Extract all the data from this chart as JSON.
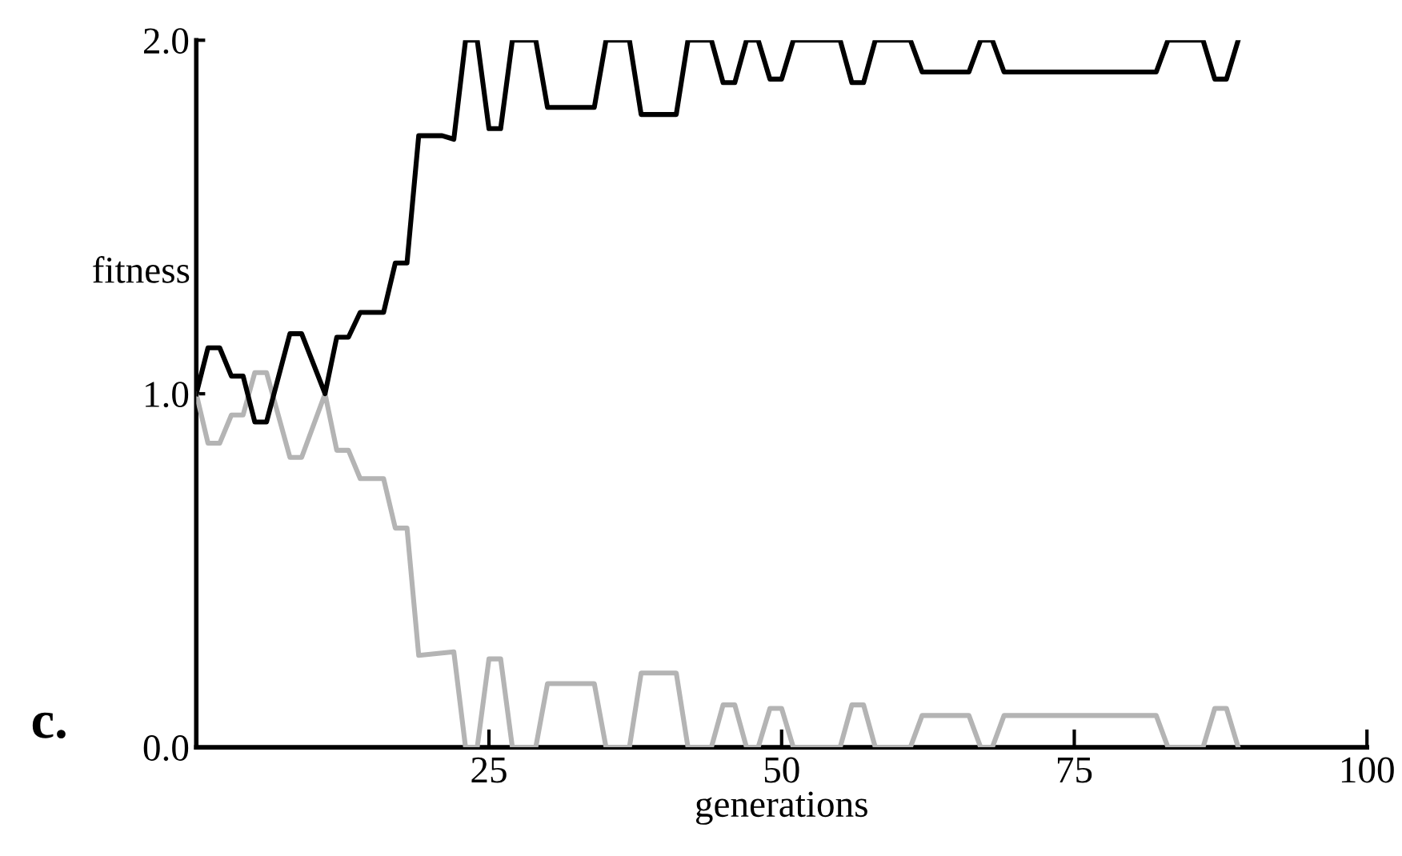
{
  "chart_data": {
    "type": "line",
    "xlabel": "generations",
    "ylabel": "fitness",
    "annotations": [
      "c."
    ],
    "xlim": [
      0,
      100
    ],
    "xticks": [
      25,
      50,
      75,
      100
    ],
    "ylim": [
      0,
      2
    ],
    "yticks": [
      {
        "value": 0,
        "label": "0.0"
      },
      {
        "value": 1,
        "label": "1.0"
      },
      {
        "value": 2,
        "label": "2.0"
      }
    ],
    "grid": false,
    "marker": "none",
    "line_style": "solid",
    "series": [
      {
        "color": "#000000",
        "x": [
          0,
          1,
          2,
          3,
          4,
          5,
          6,
          8,
          9,
          11,
          12,
          13,
          14,
          16,
          17,
          18,
          19,
          21,
          22,
          23,
          24,
          25,
          26,
          27,
          29,
          30,
          34,
          35,
          37,
          38,
          41,
          42,
          44,
          45,
          46,
          47,
          48,
          49,
          50,
          51,
          55,
          56,
          57,
          58,
          61,
          62,
          66,
          67,
          68,
          69,
          82,
          83,
          86,
          87,
          88,
          89
        ],
        "values": [
          1.0,
          1.13,
          1.13,
          1.05,
          1.05,
          0.92,
          0.92,
          1.17,
          1.17,
          1.0,
          1.16,
          1.16,
          1.23,
          1.23,
          1.37,
          1.37,
          1.73,
          1.73,
          1.72,
          2.0,
          2.0,
          1.75,
          1.75,
          2.0,
          2.0,
          1.81,
          1.81,
          2.0,
          2.0,
          1.79,
          1.79,
          2.0,
          2.0,
          1.88,
          1.88,
          2.0,
          2.0,
          1.89,
          1.89,
          2.0,
          2.0,
          1.88,
          1.88,
          2.0,
          2.0,
          1.91,
          1.91,
          2.0,
          2.0,
          1.91,
          1.91,
          2.0,
          2.0,
          1.89,
          1.89,
          2.0
        ]
      },
      {
        "color": "#b4b4b4",
        "x": [
          0,
          1,
          2,
          3,
          4,
          5,
          6,
          8,
          9,
          11,
          12,
          13,
          14,
          16,
          17,
          18,
          19,
          22,
          23,
          24,
          25,
          26,
          27,
          29,
          30,
          34,
          35,
          37,
          38,
          41,
          42,
          44,
          45,
          46,
          47,
          48,
          49,
          50,
          51,
          55,
          56,
          57,
          58,
          61,
          62,
          66,
          67,
          68,
          69,
          82,
          83,
          86,
          87,
          88,
          89
        ],
        "values": [
          1.0,
          0.86,
          0.86,
          0.94,
          0.94,
          1.06,
          1.06,
          0.82,
          0.82,
          1.0,
          0.84,
          0.84,
          0.76,
          0.76,
          0.62,
          0.62,
          0.26,
          0.27,
          0,
          0,
          0.25,
          0.25,
          0,
          0,
          0.18,
          0.18,
          0,
          0,
          0.21,
          0.21,
          0,
          0,
          0.12,
          0.12,
          0,
          0,
          0.11,
          0.11,
          0,
          0,
          0.12,
          0.12,
          0,
          0,
          0.09,
          0.09,
          0,
          0,
          0.09,
          0.09,
          0,
          0,
          0.11,
          0.11,
          0
        ]
      }
    ]
  }
}
